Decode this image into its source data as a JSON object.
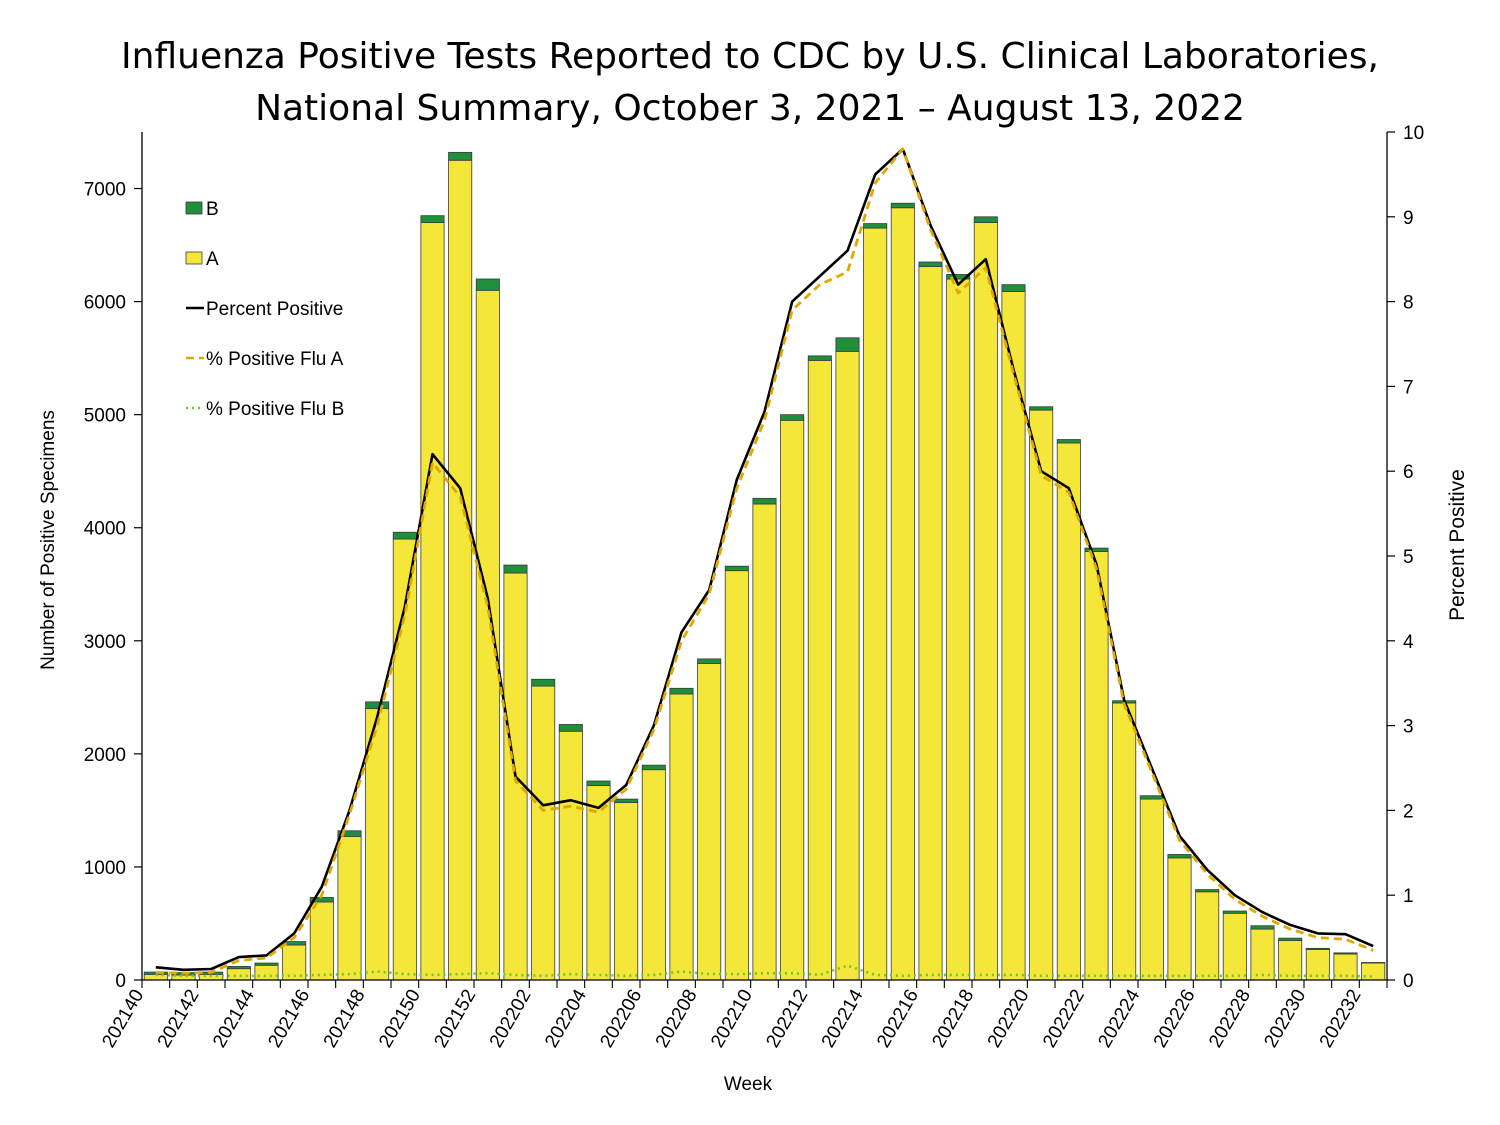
{
  "chart_data": {
    "type": "bar",
    "title_line1": "Influenza Positive Tests Reported to CDC by U.S. Clinical Laboratories,",
    "title_line2": "National Summary, October 3, 2021 – August 13, 2022",
    "xlabel": "Week",
    "ylabel_left": "Number of Positive Specimens",
    "ylabel_right": "Percent Positive",
    "ylim_left": [
      0,
      7500
    ],
    "ylim_right": [
      0,
      10
    ],
    "yticks_left": [
      0,
      1000,
      2000,
      3000,
      4000,
      5000,
      6000,
      7000
    ],
    "yticks_right": [
      0,
      1,
      2,
      3,
      4,
      5,
      6,
      7,
      8,
      9,
      10
    ],
    "xtick_labels": [
      "202140",
      "202142",
      "202144",
      "202146",
      "202148",
      "202150",
      "202152",
      "202202",
      "202204",
      "202206",
      "202208",
      "202210",
      "202212",
      "202214",
      "202216",
      "202218",
      "202220",
      "202222",
      "202224",
      "202226",
      "202228",
      "202230",
      "202232"
    ],
    "categories": [
      "202140",
      "202141",
      "202142",
      "202143",
      "202144",
      "202145",
      "202146",
      "202147",
      "202148",
      "202149",
      "202150",
      "202151",
      "202152",
      "202201",
      "202202",
      "202203",
      "202204",
      "202205",
      "202206",
      "202207",
      "202208",
      "202209",
      "202210",
      "202211",
      "202212",
      "202213",
      "202214",
      "202215",
      "202216",
      "202217",
      "202218",
      "202219",
      "202220",
      "202221",
      "202222",
      "202223",
      "202224",
      "202225",
      "202226",
      "202227",
      "202228",
      "202229",
      "202230",
      "202231",
      "202232"
    ],
    "series": [
      {
        "name": "A",
        "type": "bar",
        "color": "#f5e73a",
        "values": [
          50,
          45,
          50,
          100,
          130,
          310,
          690,
          1270,
          2400,
          3900,
          6700,
          7250,
          6100,
          3600,
          2600,
          2200,
          1720,
          1570,
          1860,
          2530,
          2800,
          3620,
          4210,
          4950,
          5480,
          5560,
          6650,
          6830,
          6310,
          6200,
          6700,
          6090,
          5040,
          4750,
          3790,
          2450,
          1600,
          1080,
          780,
          590,
          450,
          350,
          270,
          230,
          150
        ]
      },
      {
        "name": "B",
        "type": "bar",
        "color": "#1f8f3a",
        "values": [
          20,
          20,
          20,
          20,
          20,
          30,
          40,
          50,
          60,
          60,
          60,
          70,
          100,
          70,
          60,
          60,
          40,
          30,
          40,
          50,
          40,
          40,
          50,
          50,
          40,
          120,
          40,
          40,
          40,
          40,
          50,
          60,
          30,
          30,
          30,
          20,
          30,
          30,
          20,
          20,
          30,
          20,
          10,
          10,
          5
        ]
      },
      {
        "name": "Percent Positive",
        "type": "line",
        "color": "#000000",
        "axis": "right",
        "values": [
          0.15,
          0.12,
          0.13,
          0.27,
          0.29,
          0.55,
          1.1,
          2.0,
          3.1,
          4.4,
          6.2,
          5.8,
          4.5,
          2.4,
          2.06,
          2.12,
          2.03,
          2.3,
          3.0,
          4.1,
          4.6,
          5.9,
          6.7,
          8.0,
          8.3,
          8.6,
          9.5,
          9.8,
          8.9,
          8.2,
          8.5,
          7.2,
          6.0,
          5.8,
          4.9,
          3.3,
          2.5,
          1.7,
          1.3,
          1.0,
          0.8,
          0.65,
          0.55,
          0.54,
          0.4
        ]
      },
      {
        "name": "% Positive Flu A",
        "type": "line",
        "color": "#e0a800",
        "axis": "right",
        "dash": "8,5",
        "values": [
          0.09,
          0.08,
          0.09,
          0.23,
          0.26,
          0.5,
          1.0,
          1.95,
          3.0,
          4.3,
          6.1,
          5.7,
          4.4,
          2.35,
          2.0,
          2.05,
          1.98,
          2.25,
          2.95,
          4.0,
          4.55,
          5.8,
          6.6,
          7.9,
          8.2,
          8.35,
          9.4,
          9.8,
          8.85,
          8.1,
          8.4,
          7.15,
          5.95,
          5.75,
          4.85,
          3.25,
          2.45,
          1.65,
          1.25,
          0.95,
          0.75,
          0.6,
          0.5,
          0.48,
          0.35
        ]
      },
      {
        "name": "% Positive Flu B",
        "type": "line",
        "color": "#66cc22",
        "axis": "right",
        "dash": "2,4",
        "values": [
          0.06,
          0.05,
          0.05,
          0.05,
          0.05,
          0.05,
          0.06,
          0.07,
          0.1,
          0.07,
          0.06,
          0.07,
          0.08,
          0.06,
          0.05,
          0.07,
          0.06,
          0.05,
          0.06,
          0.1,
          0.07,
          0.07,
          0.08,
          0.08,
          0.06,
          0.17,
          0.06,
          0.05,
          0.06,
          0.06,
          0.06,
          0.06,
          0.05,
          0.05,
          0.05,
          0.05,
          0.05,
          0.05,
          0.05,
          0.05,
          0.06,
          0.05,
          0.05,
          0.05,
          0.04
        ]
      }
    ],
    "stacked": true,
    "grid": false,
    "legend": {
      "placement": "top-left",
      "items": [
        {
          "label": "B",
          "kind": "box",
          "color": "#1f8f3a"
        },
        {
          "label": "A",
          "kind": "box",
          "color": "#f5e73a"
        },
        {
          "label": "Percent Positive",
          "kind": "line",
          "color": "#000000",
          "dash": ""
        },
        {
          "label": "% Positive Flu A",
          "kind": "line",
          "color": "#e0a800",
          "dash": "8,5"
        },
        {
          "label": "% Positive Flu B",
          "kind": "line",
          "color": "#66cc22",
          "dash": "2,4"
        }
      ]
    }
  }
}
